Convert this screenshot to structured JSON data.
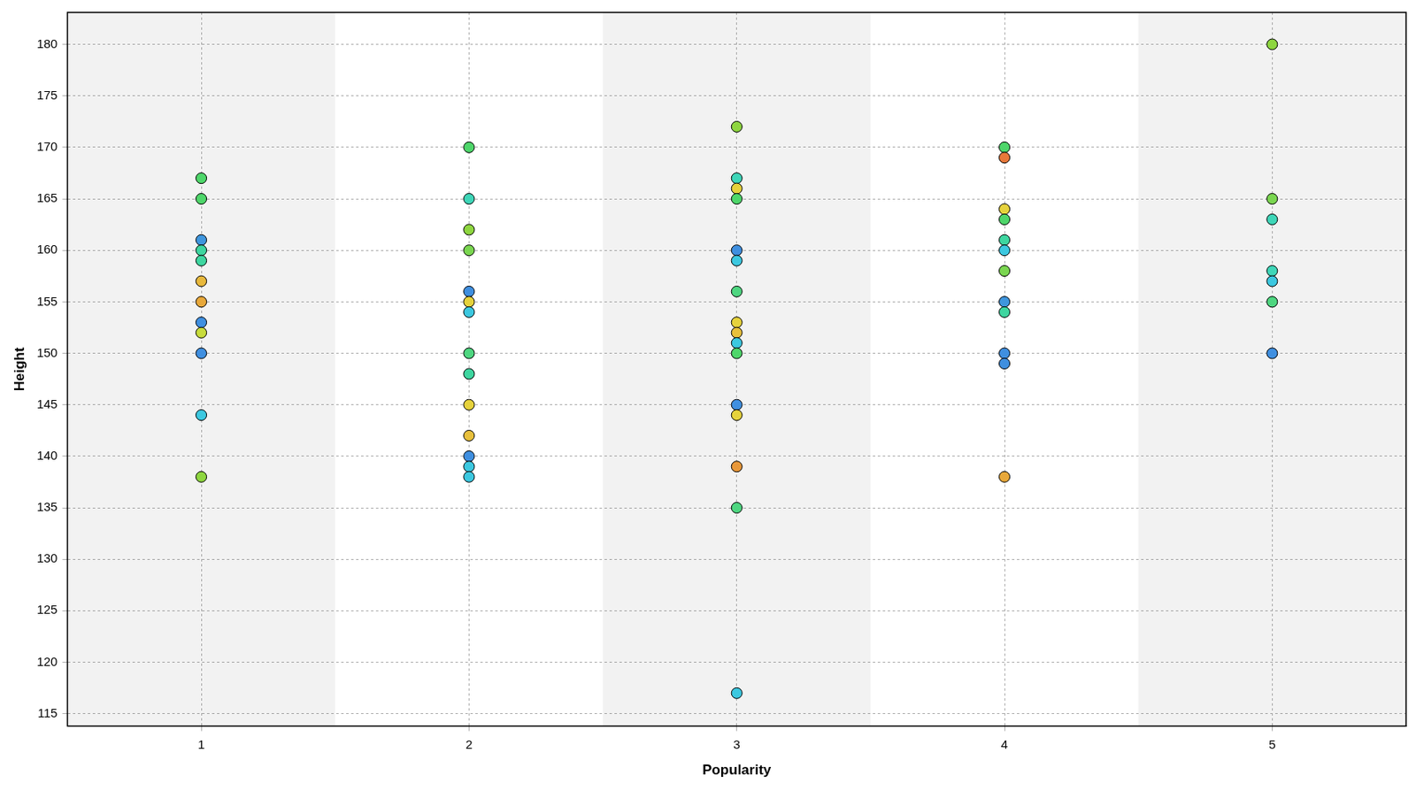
{
  "chart_data": {
    "type": "scatter",
    "x_label": "Popularity",
    "y_label": "Height",
    "x": [
      1,
      1,
      1,
      1,
      1,
      1,
      1,
      1,
      1,
      1,
      1,
      1,
      2,
      2,
      2,
      2,
      2,
      2,
      2,
      2,
      2,
      2,
      2,
      2,
      2,
      2,
      3,
      3,
      3,
      3,
      3,
      3,
      3,
      3,
      3,
      3,
      3,
      3,
      3,
      3,
      3,
      3,
      4,
      4,
      4,
      4,
      4,
      4,
      4,
      4,
      4,
      4,
      4,
      4,
      5,
      5,
      5,
      5,
      5,
      5,
      5
    ],
    "values": [
      167,
      165,
      161,
      160,
      159,
      157,
      155,
      153,
      152,
      150,
      144,
      138,
      170,
      165,
      162,
      160,
      156,
      155,
      154,
      150,
      148,
      145,
      142,
      140,
      139,
      138,
      172,
      167,
      166,
      165,
      160,
      159,
      156,
      153,
      152,
      151,
      150,
      145,
      144,
      139,
      135,
      117,
      170,
      169,
      164,
      163,
      161,
      160,
      158,
      155,
      154,
      150,
      149,
      138,
      180,
      165,
      163,
      158,
      157,
      155,
      150
    ],
    "colors": [
      "#4ed66a",
      "#4ed66a",
      "#3f96de",
      "#3ed6a0",
      "#3ed6a0",
      "#e8b83c",
      "#e8a83a",
      "#3f8fe0",
      "#c8dc3c",
      "#3f8fe0",
      "#3cc8e0",
      "#8ed640",
      "#4ed66a",
      "#3ed6b8",
      "#8ed640",
      "#7ad650",
      "#3f8fe0",
      "#e6d23c",
      "#3cc8e0",
      "#4ed680",
      "#3ed6a0",
      "#e6d23c",
      "#e8c03c",
      "#3f8fe0",
      "#3cc8e0",
      "#3cc8e0",
      "#8ed640",
      "#3ed6b8",
      "#e6d23c",
      "#4ed66a",
      "#3f8fe0",
      "#3cc8e0",
      "#4ed680",
      "#e6d23c",
      "#e8c03c",
      "#3cc8e0",
      "#4ed66a",
      "#3f8fe0",
      "#e6d23c",
      "#e8983a",
      "#4ed680",
      "#3cc8e0",
      "#4ed66a",
      "#e8783a",
      "#e6d23c",
      "#4ed66a",
      "#3ed6a0",
      "#3cc8e0",
      "#7ad650",
      "#3f96de",
      "#3ed6a0",
      "#3f8fe0",
      "#3f8fe0",
      "#e8a83a",
      "#8ed640",
      "#7ad650",
      "#3ed6b8",
      "#3ed6b8",
      "#3cc8e0",
      "#4ed680",
      "#3f8fe0"
    ],
    "xlim": [
      0.5,
      5.5
    ],
    "xticks": [
      1,
      2,
      3,
      4,
      5
    ],
    "ylim": [
      113.8,
      183.1
    ],
    "yticks": [
      115,
      120,
      125,
      130,
      135,
      140,
      145,
      150,
      155,
      160,
      165,
      170,
      175,
      180
    ],
    "grid": true
  }
}
